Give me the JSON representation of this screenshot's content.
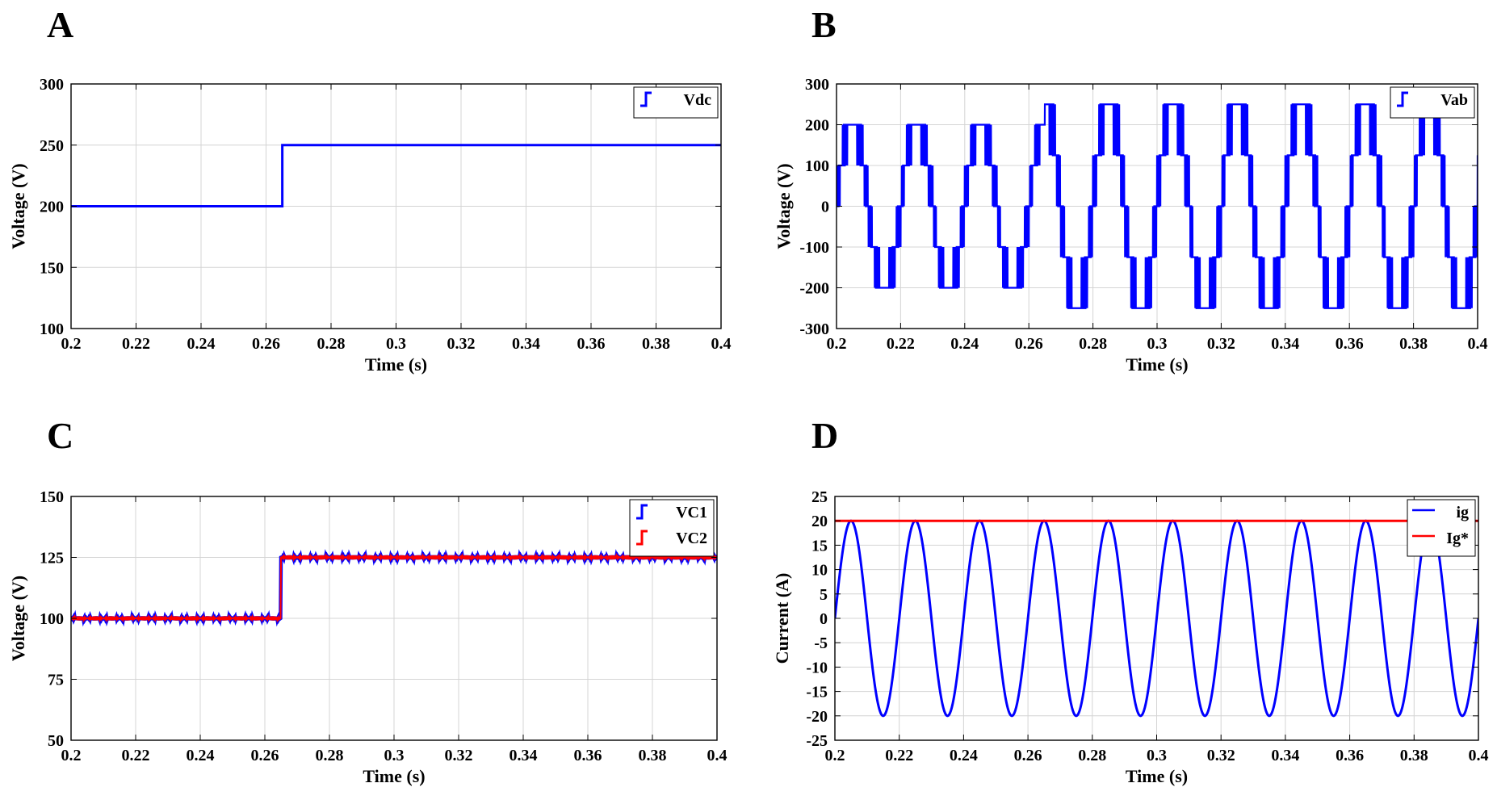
{
  "figure": {
    "panels": [
      "A",
      "B",
      "C",
      "D"
    ]
  },
  "chart_data": [
    {
      "id": "A",
      "type": "line",
      "xlabel": "Time (s)",
      "ylabel": "Voltage (V)",
      "xlim": [
        0.2,
        0.4
      ],
      "ylim": [
        100,
        300
      ],
      "xticks": [
        0.2,
        0.22,
        0.24,
        0.26,
        0.28,
        0.3,
        0.32,
        0.34,
        0.36,
        0.38,
        0.4
      ],
      "xtick_labels": [
        "0.2",
        "0.22",
        "0.24",
        "0.26",
        "0.28",
        "0.3",
        "0.32",
        "0.34",
        "0.36",
        "0.38",
        "0.4"
      ],
      "yticks": [
        100,
        150,
        200,
        250,
        300
      ],
      "ytick_labels": [
        "100",
        "150",
        "200",
        "250",
        "300"
      ],
      "grid": true,
      "legend_position": "top-right",
      "series": [
        {
          "name": "Vdc",
          "color": "#0000ff",
          "x": [
            0.2,
            0.265,
            0.265,
            0.4
          ],
          "y": [
            200,
            200,
            250,
            250
          ]
        }
      ]
    },
    {
      "id": "B",
      "type": "line",
      "xlabel": "Time (s)",
      "ylabel": "Voltage (V)",
      "xlim": [
        0.2,
        0.4
      ],
      "ylim": [
        -300,
        300
      ],
      "xticks": [
        0.2,
        0.22,
        0.24,
        0.26,
        0.28,
        0.3,
        0.32,
        0.34,
        0.36,
        0.38,
        0.4
      ],
      "xtick_labels": [
        "0.2",
        "0.22",
        "0.24",
        "0.26",
        "0.28",
        "0.3",
        "0.32",
        "0.34",
        "0.36",
        "0.38",
        "0.4"
      ],
      "yticks": [
        -300,
        -200,
        -100,
        0,
        100,
        200,
        300
      ],
      "ytick_labels": [
        "-300",
        "-200",
        "-100",
        "0",
        "100",
        "200",
        "300"
      ],
      "grid": true,
      "legend_position": "top-right",
      "series": [
        {
          "name": "Vab",
          "color": "#0000ff",
          "waveform": "multilevel-pwm",
          "frequency_hz": 50,
          "levels_before_step": [
            0,
            100,
            200
          ],
          "levels_after_step": [
            0,
            125,
            250
          ],
          "step_time": 0.265
        }
      ]
    },
    {
      "id": "C",
      "type": "line",
      "xlabel": "Time (s)",
      "ylabel": "Voltage (V)",
      "xlim": [
        0.2,
        0.4
      ],
      "ylim": [
        50,
        150
      ],
      "xticks": [
        0.2,
        0.22,
        0.24,
        0.26,
        0.28,
        0.3,
        0.32,
        0.34,
        0.36,
        0.38,
        0.4
      ],
      "xtick_labels": [
        "0.2",
        "0.22",
        "0.24",
        "0.26",
        "0.28",
        "0.3",
        "0.32",
        "0.34",
        "0.36",
        "0.38",
        "0.4"
      ],
      "yticks": [
        50,
        75,
        100,
        125,
        150
      ],
      "ytick_labels": [
        "50",
        "75",
        "100",
        "125",
        "150"
      ],
      "grid": true,
      "legend_position": "top-right",
      "series": [
        {
          "name": "VC1",
          "color": "#0000ff",
          "x": [
            0.2,
            0.265,
            0.265,
            0.4
          ],
          "y": [
            100,
            100,
            125,
            125
          ],
          "ripple": 0.8
        },
        {
          "name": "VC2",
          "color": "#ff0000",
          "x": [
            0.2,
            0.265,
            0.265,
            0.4
          ],
          "y": [
            100,
            100,
            125,
            125
          ],
          "ripple": 0.8
        }
      ]
    },
    {
      "id": "D",
      "type": "line",
      "xlabel": "Time (s)",
      "ylabel": "Current (A)",
      "xlim": [
        0.2,
        0.4
      ],
      "ylim": [
        -25,
        25
      ],
      "xticks": [
        0.2,
        0.22,
        0.24,
        0.26,
        0.28,
        0.3,
        0.32,
        0.34,
        0.36,
        0.38,
        0.4
      ],
      "xtick_labels": [
        "0.2",
        "0.22",
        "0.24",
        "0.26",
        "0.28",
        "0.3",
        "0.32",
        "0.34",
        "0.36",
        "0.38",
        "0.4"
      ],
      "yticks": [
        -25,
        -20,
        -15,
        -10,
        -5,
        0,
        5,
        10,
        15,
        20,
        25
      ],
      "ytick_labels": [
        "-25",
        "-20",
        "-15",
        "-10",
        "-5",
        "0",
        "5",
        "10",
        "15",
        "20",
        "25"
      ],
      "grid": true,
      "legend_position": "top-right",
      "series": [
        {
          "name": "ig",
          "color": "#0000ff",
          "waveform": "sine",
          "amplitude": 20,
          "frequency_hz": 50,
          "phase_zero_time": 0.2
        },
        {
          "name": "Ig*",
          "color": "#ff0000",
          "x": [
            0.2,
            0.4
          ],
          "y": [
            20,
            20
          ]
        }
      ]
    }
  ]
}
